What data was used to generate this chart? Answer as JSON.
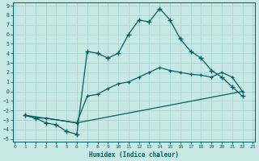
{
  "xlabel": "Humidex (Indice chaleur)",
  "bg_color": "#c8e8e4",
  "grid_color": "#a8d4d0",
  "line_color": "#006060",
  "spine_color": "#006060",
  "xlim_min": -0.2,
  "xlim_max": 23.2,
  "ylim_min": -5.3,
  "ylim_max": 9.3,
  "xticks": [
    0,
    1,
    2,
    3,
    4,
    5,
    6,
    7,
    8,
    9,
    10,
    11,
    12,
    13,
    14,
    15,
    16,
    17,
    18,
    19,
    20,
    21,
    22,
    23
  ],
  "yticks": [
    -5,
    -4,
    -3,
    -2,
    -1,
    0,
    1,
    2,
    3,
    4,
    5,
    6,
    7,
    8,
    9
  ],
  "curve1_x": [
    1,
    2,
    3,
    4,
    5,
    6,
    7,
    8,
    9,
    10,
    11,
    12,
    13,
    14,
    15,
    16,
    17,
    18,
    19,
    20,
    21,
    22
  ],
  "curve1_y": [
    -2.5,
    -2.8,
    -3.3,
    -3.5,
    -4.2,
    -4.5,
    4.2,
    4.0,
    3.5,
    4.0,
    6.0,
    7.5,
    7.3,
    8.7,
    7.5,
    5.5,
    4.2,
    3.5,
    2.2,
    1.5,
    0.5,
    -0.5
  ],
  "curve2_x": [
    1,
    2,
    3,
    6,
    7,
    8,
    9,
    10,
    11,
    12,
    13,
    14,
    15,
    16,
    17,
    18,
    19,
    20,
    21,
    22
  ],
  "curve2_y": [
    -2.5,
    -2.8,
    -2.8,
    -3.3,
    -0.5,
    -0.3,
    0.3,
    0.8,
    1.0,
    1.5,
    2.0,
    2.5,
    2.2,
    2.0,
    1.8,
    1.7,
    1.5,
    2.0,
    1.5,
    0.0
  ],
  "curve3_x": [
    1,
    6,
    22
  ],
  "curve3_y": [
    -2.5,
    -3.3,
    0.0
  ]
}
